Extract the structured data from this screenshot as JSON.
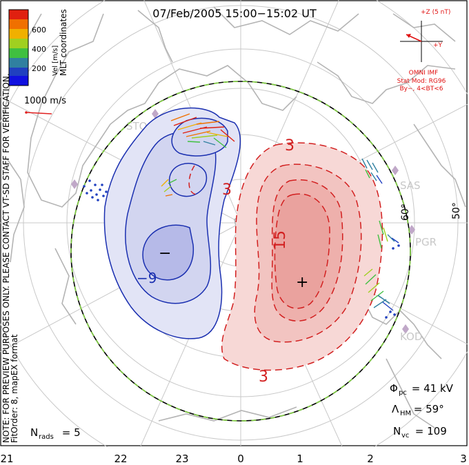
{
  "title": "07/Feb/2005 15:00−15:02 UT",
  "colorbar": {
    "ticks": [
      "600",
      "400",
      "200"
    ],
    "label": "Vel [m/s]",
    "colors": [
      "#e02010",
      "#f07000",
      "#f0b000",
      "#a0d020",
      "#40c040",
      "#3080a0",
      "#2040c0",
      "#1010e0"
    ]
  },
  "coords": "MLT coordinates",
  "scale": {
    "label": "1000 m/s",
    "color": "#e02020"
  },
  "note_line1": "NOTE: FOR PREVIEW PURPOSES ONLY. PLEASE CONTACT VT-SD STAFF FOR VERIFICATION.",
  "note_line2": "FitOrder: 8, mapEX format",
  "imf": {
    "z_label": "+Z (5 nT)",
    "y_label": "+Y",
    "model": "OMNI IMF",
    "stat": "Stat Mod: RG96",
    "cond": "By−, 4<BT<6",
    "color": "#e01010"
  },
  "stations": [
    "STO",
    "SAS",
    "PGR",
    "KOD"
  ],
  "lat_labels": [
    "60°",
    "50°"
  ],
  "contours": {
    "neg_label": "−9",
    "pos_label_1": "15",
    "pos_label_2": "3",
    "pos_label_3": "3",
    "pos_label_4": "3",
    "min_sign": "−",
    "max_sign": "+"
  },
  "stats": {
    "phi_sym": "Φ",
    "phi_sub": "pc",
    "phi_val": " = 41 kV",
    "lambda_sym": "Λ",
    "lambda_sub": "HM",
    "lambda_val": " = 59°",
    "nvc_sym": "N",
    "nvc_sub": "vc",
    "nvc_val": " = 109",
    "nrads_sym": "N",
    "nrads_sub": "rads",
    "nrads_val": " = 5"
  },
  "mlt_axis": [
    "21",
    "22",
    "23",
    "0",
    "1",
    "2",
    "3"
  ],
  "colors": {
    "neg_fill": "#b8bce8",
    "pos_fill": "#f2b8b4",
    "neg_line": "#1a2fb0",
    "pos_line": "#d21f1f",
    "land": "#b8b8b8"
  }
}
